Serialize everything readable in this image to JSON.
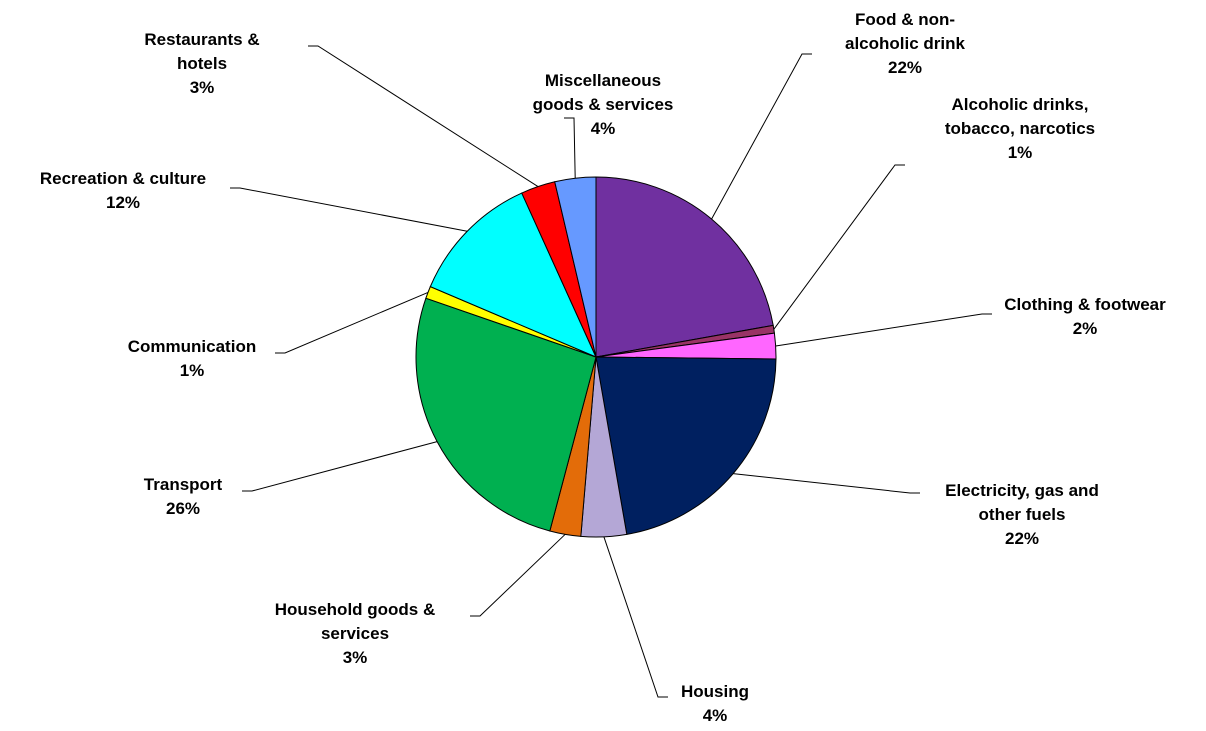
{
  "chart_data": {
    "type": "pie",
    "title": "",
    "start_angle_deg": 0,
    "direction": "clockwise",
    "slices": [
      {
        "name": "Food & non-alcoholic drink",
        "label_lines": [
          "Food & non-",
          "alcoholic drink"
        ],
        "value": 22.3,
        "display": "22%",
        "color": "#7030A0"
      },
      {
        "name": "Alcoholic drinks, tobacco, narcotics",
        "label_lines": [
          "Alcoholic drinks,",
          "tobacco, narcotics"
        ],
        "value": 0.7,
        "display": "1%",
        "color": "#993366"
      },
      {
        "name": "Clothing & footwear",
        "label_lines": [
          "Clothing & footwear"
        ],
        "value": 2.3,
        "display": "2%",
        "color": "#FF66FF"
      },
      {
        "name": "Electricity, gas and other fuels",
        "label_lines": [
          "Electricity, gas and",
          "other fuels"
        ],
        "value": 22.2,
        "display": "22%",
        "color": "#002060"
      },
      {
        "name": "Housing",
        "label_lines": [
          "Housing"
        ],
        "value": 4.1,
        "display": "4%",
        "color": "#B4A7D6"
      },
      {
        "name": "Household goods & services",
        "label_lines": [
          "Household goods &",
          "services"
        ],
        "value": 2.8,
        "display": "3%",
        "color": "#E36C09"
      },
      {
        "name": "Transport",
        "label_lines": [
          "Transport"
        ],
        "value": 26.3,
        "display": "26%",
        "color": "#00B050"
      },
      {
        "name": "Communication",
        "label_lines": [
          "Communication"
        ],
        "value": 1.1,
        "display": "1%",
        "color": "#FFFF00"
      },
      {
        "name": "Recreation & culture",
        "label_lines": [
          "Recreation  & culture"
        ],
        "value": 11.9,
        "display": "12%",
        "color": "#00FFFF"
      },
      {
        "name": "Restaurants & hotels",
        "label_lines": [
          "Restaurants  &",
          "hotels"
        ],
        "value": 3.1,
        "display": "3%",
        "color": "#FF0000"
      },
      {
        "name": "Miscellaneous goods & services",
        "label_lines": [
          "Miscellaneous",
          "goods & services"
        ],
        "value": 3.7,
        "display": "4%",
        "color": "#6699FF"
      }
    ]
  }
}
